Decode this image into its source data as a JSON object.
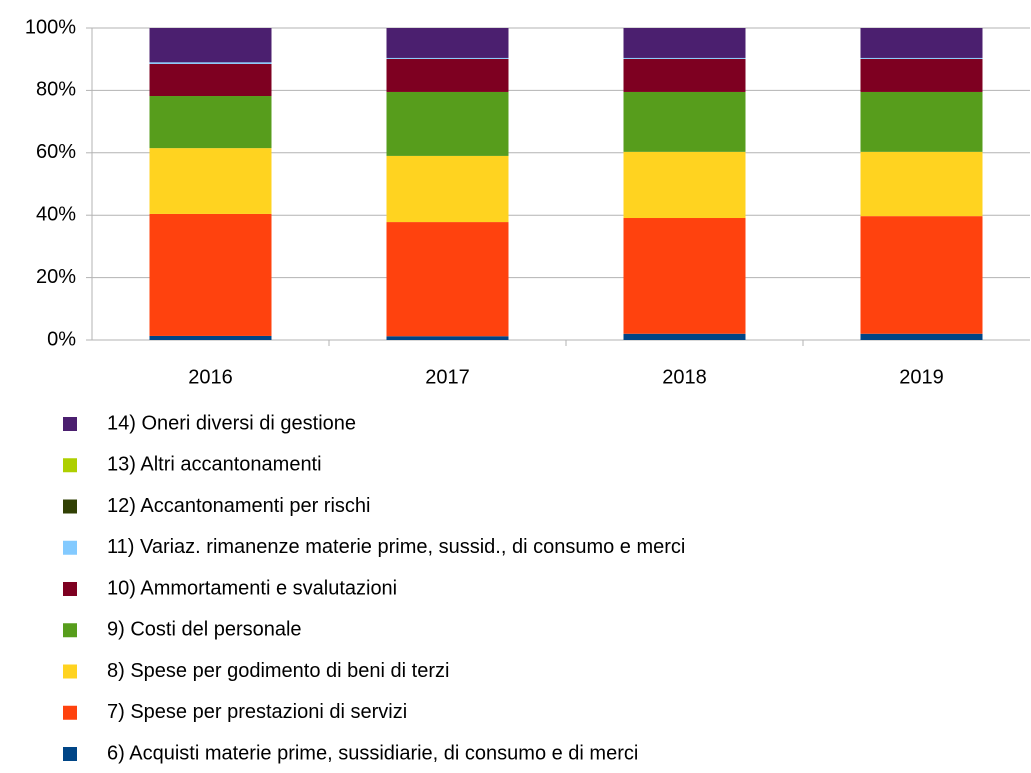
{
  "chart_data": {
    "type": "bar",
    "stacked": true,
    "categories": [
      "2016",
      "2017",
      "2018",
      "2019"
    ],
    "series": [
      {
        "name": "6) Acquisti materie prime, sussidiarie, di consumo e di merci",
        "color": "#004586",
        "values": [
          1.3,
          1.2,
          2,
          2
        ]
      },
      {
        "name": "7) Spese per prestazioni di servizi",
        "color": "#ff420e",
        "values": [
          39.1,
          36.6,
          37.1,
          37.7
        ]
      },
      {
        "name": "8) Spese per godimento di beni di terzi",
        "color": "#ffd320",
        "values": [
          21.1,
          21.2,
          21.2,
          20.6
        ]
      },
      {
        "name": "9) Costi del personale",
        "color": "#579d1c",
        "values": [
          16.7,
          20.5,
          19.2,
          19.2
        ]
      },
      {
        "name": "10) Ammortamenti e svalutazioni",
        "color": "#7e0021",
        "values": [
          10.3,
          10.6,
          10.6,
          10.6
        ]
      },
      {
        "name": "11) Variaz. rimanenze materie prime, sussid., di consumo e merci",
        "color": "#83caff",
        "values": [
          0.5,
          0.3,
          0.3,
          0.3
        ]
      },
      {
        "name": "12) Accantonamenti per rischi",
        "color": "#314004",
        "values": [
          0,
          0,
          0,
          0
        ]
      },
      {
        "name": "13) Altri accantonamenti",
        "color": "#aecf00",
        "values": [
          0,
          0,
          0,
          0
        ]
      },
      {
        "name": "14) Oneri diversi di gestione",
        "color": "#4b1f6f",
        "values": [
          11,
          9.6,
          9.6,
          9.6
        ]
      }
    ],
    "ylim": [
      0,
      100
    ],
    "yticks": [
      {
        "value": 0,
        "label": "0%"
      },
      {
        "value": 20,
        "label": "20%"
      },
      {
        "value": 40,
        "label": "40%"
      },
      {
        "value": 60,
        "label": "60%"
      },
      {
        "value": 80,
        "label": "80%"
      },
      {
        "value": 100,
        "label": "100%"
      }
    ],
    "grid": true,
    "legend": "bottom"
  }
}
